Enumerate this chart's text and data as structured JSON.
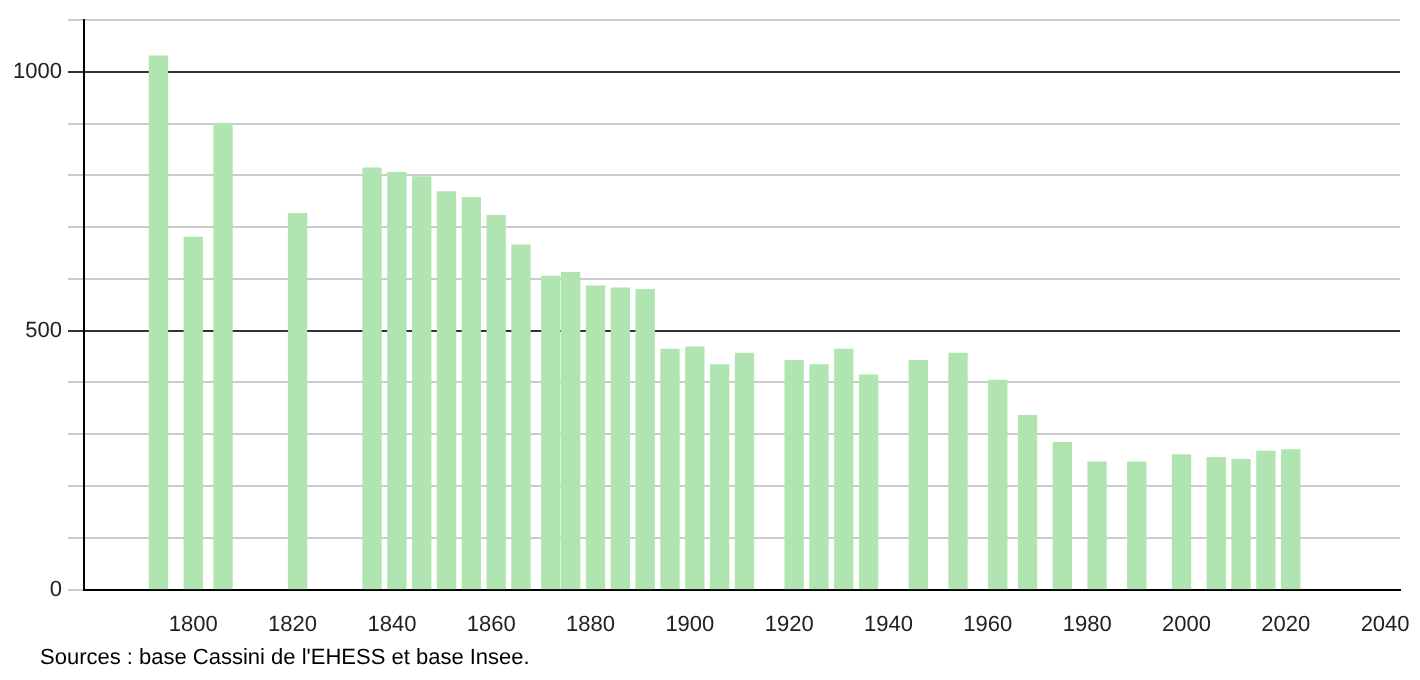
{
  "chart_data": {
    "type": "bar",
    "color": "#b0e4b0",
    "x": [
      1793,
      1800,
      1806,
      1821,
      1836,
      1841,
      1846,
      1851,
      1856,
      1861,
      1866,
      1872,
      1876,
      1881,
      1886,
      1891,
      1896,
      1901,
      1906,
      1911,
      1921,
      1926,
      1931,
      1936,
      1946,
      1954,
      1962,
      1968,
      1975,
      1982,
      1990,
      1999,
      2006,
      2011,
      2016,
      2021
    ],
    "values": [
      1030,
      680,
      900,
      726,
      814,
      805,
      797,
      768,
      757,
      722,
      665,
      605,
      612,
      586,
      582,
      579,
      464,
      468,
      434,
      456,
      442,
      434,
      464,
      414,
      442,
      456,
      404,
      336,
      284,
      246,
      246,
      260,
      255,
      251,
      267,
      270
    ],
    "xlim": [
      1778,
      2043
    ],
    "xticks": [
      1800,
      1820,
      1840,
      1860,
      1880,
      1900,
      1920,
      1940,
      1960,
      1980,
      2000,
      2020,
      2040
    ],
    "ylim": [
      0,
      1100
    ],
    "yticks": [
      0,
      {
        "value": 100,
        "label": null
      },
      {
        "value": 200,
        "label": null
      },
      {
        "value": 300,
        "label": null
      },
      {
        "value": 400,
        "label": null
      },
      500,
      {
        "value": 600,
        "label": null
      },
      {
        "value": 700,
        "label": null
      },
      {
        "value": 800,
        "label": null
      },
      {
        "value": 900,
        "label": null
      },
      1000,
      {
        "value": 1100,
        "label": null
      }
    ],
    "grid": "y",
    "legend": false,
    "annotations": [
      "Sources : base Cassini de l'EHESS et base Insee."
    ]
  }
}
